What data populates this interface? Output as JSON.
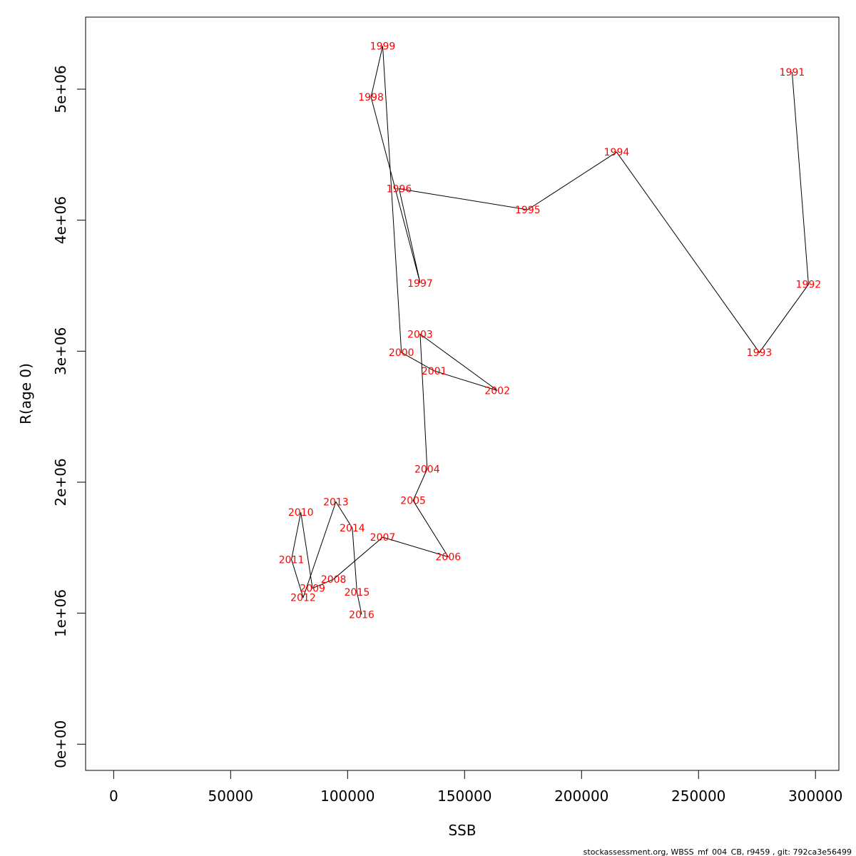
{
  "chart_data": {
    "type": "line",
    "xlabel": "SSB",
    "ylabel": "R(age 0)",
    "xlim": [
      -12000,
      310000
    ],
    "ylim": [
      -200000,
      5550000
    ],
    "x_ticks": [
      0,
      50000,
      100000,
      150000,
      200000,
      250000,
      300000
    ],
    "x_tick_labels": [
      "0",
      "50000",
      "100000",
      "150000",
      "200000",
      "250000",
      "300000"
    ],
    "y_ticks": [
      0,
      1000000,
      2000000,
      3000000,
      4000000,
      5000000
    ],
    "y_tick_labels": [
      "0e+00",
      "1e+06",
      "2e+06",
      "3e+06",
      "4e+06",
      "5e+06"
    ],
    "grid": false,
    "line_color": "#000000",
    "label_color": "#ff0000",
    "points": [
      {
        "label": "1991",
        "x": 290000,
        "y": 5130000
      },
      {
        "label": "1992",
        "x": 297000,
        "y": 3510000
      },
      {
        "label": "1993",
        "x": 276000,
        "y": 2990000
      },
      {
        "label": "1994",
        "x": 215000,
        "y": 4520000
      },
      {
        "label": "1995",
        "x": 177000,
        "y": 4080000
      },
      {
        "label": "1996",
        "x": 122000,
        "y": 4240000
      },
      {
        "label": "1997",
        "x": 131000,
        "y": 3520000
      },
      {
        "label": "1998",
        "x": 110000,
        "y": 4940000
      },
      {
        "label": "1999",
        "x": 115000,
        "y": 5330000
      },
      {
        "label": "2000",
        "x": 123000,
        "y": 2990000
      },
      {
        "label": "2001",
        "x": 137000,
        "y": 2850000
      },
      {
        "label": "2002",
        "x": 164000,
        "y": 2700000
      },
      {
        "label": "2003",
        "x": 131000,
        "y": 3130000
      },
      {
        "label": "2004",
        "x": 134000,
        "y": 2100000
      },
      {
        "label": "2005",
        "x": 128000,
        "y": 1860000
      },
      {
        "label": "2006",
        "x": 143000,
        "y": 1430000
      },
      {
        "label": "2007",
        "x": 115000,
        "y": 1580000
      },
      {
        "label": "2008",
        "x": 94000,
        "y": 1260000
      },
      {
        "label": "2009",
        "x": 85000,
        "y": 1190000
      },
      {
        "label": "2010",
        "x": 80000,
        "y": 1770000
      },
      {
        "label": "2011",
        "x": 76000,
        "y": 1410000
      },
      {
        "label": "2012",
        "x": 81000,
        "y": 1120000
      },
      {
        "label": "2013",
        "x": 95000,
        "y": 1850000
      },
      {
        "label": "2014",
        "x": 102000,
        "y": 1650000
      },
      {
        "label": "2015",
        "x": 104000,
        "y": 1160000
      },
      {
        "label": "2016",
        "x": 106000,
        "y": 990000
      }
    ]
  },
  "footer": "stockassessment.org, WBSS_mf_004_CB, r9459 , git: 792ca3e56499"
}
